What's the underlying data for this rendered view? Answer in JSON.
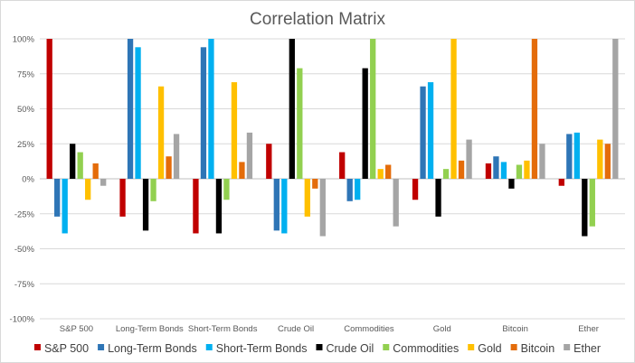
{
  "chart_data": {
    "type": "bar",
    "title": "Correlation Matrix",
    "xlabel": "",
    "ylabel": "",
    "ylim": [
      -1.0,
      1.0
    ],
    "yticks": [
      -1.0,
      -0.75,
      -0.5,
      -0.25,
      0,
      0.25,
      0.5,
      0.75,
      1.0
    ],
    "ytick_labels": [
      "-100%",
      "-75%",
      "-50%",
      "-25%",
      "0%",
      "25%",
      "50%",
      "75%",
      "100%"
    ],
    "grid": true,
    "legend_position": "bottom",
    "categories": [
      "S&P 500",
      "Long-Term Bonds",
      "Short-Term Bonds",
      "Crude Oil",
      "Commodities",
      "Gold",
      "Bitcoin",
      "Ether"
    ],
    "series": [
      {
        "name": "S&P 500",
        "color": "#c00000",
        "values": [
          1.0,
          -0.27,
          -0.39,
          0.25,
          0.19,
          -0.15,
          0.11,
          -0.05
        ]
      },
      {
        "name": "Long-Term Bonds",
        "color": "#2e75b6",
        "values": [
          -0.27,
          1.0,
          0.94,
          -0.37,
          -0.16,
          0.66,
          0.16,
          0.32
        ]
      },
      {
        "name": "Short-Term Bonds",
        "color": "#00b0f0",
        "values": [
          -0.39,
          0.94,
          1.0,
          -0.39,
          -0.15,
          0.69,
          0.12,
          0.33
        ]
      },
      {
        "name": "Crude Oil",
        "color": "#000000",
        "values": [
          0.25,
          -0.37,
          -0.39,
          1.0,
          0.79,
          -0.27,
          -0.07,
          -0.41
        ]
      },
      {
        "name": "Commodities",
        "color": "#92d050",
        "values": [
          0.19,
          -0.16,
          -0.15,
          0.79,
          1.0,
          0.07,
          0.1,
          -0.34
        ]
      },
      {
        "name": "Gold",
        "color": "#ffc000",
        "values": [
          -0.15,
          0.66,
          0.69,
          -0.27,
          0.07,
          1.0,
          0.13,
          0.28
        ]
      },
      {
        "name": "Bitcoin",
        "color": "#e46c0a",
        "values": [
          0.11,
          0.16,
          0.12,
          -0.07,
          0.1,
          0.13,
          1.0,
          0.25
        ]
      },
      {
        "name": "Ether",
        "color": "#a5a5a5",
        "values": [
          -0.05,
          0.32,
          0.33,
          -0.41,
          -0.34,
          0.28,
          0.25,
          1.0
        ]
      }
    ]
  }
}
